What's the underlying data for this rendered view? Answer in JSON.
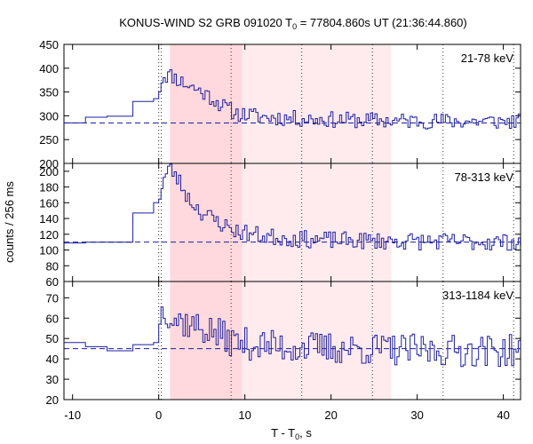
{
  "chart_data": {
    "type": "line",
    "title": "KONUS-WIND S2 GRB 091020 T",
    "title_sub": "0",
    "title_rest": " = 77804.860s UT (21:36:44.860)",
    "xlabel": "T - T",
    "xlabel_sub": "0",
    "xlabel_rest": ", s",
    "ylabel": "counts / 256 ms",
    "xlim": [
      -11,
      42
    ],
    "xticks": [
      -10,
      0,
      10,
      20,
      30,
      40
    ],
    "xtick_labels": [
      "-10",
      "0",
      "10",
      "20",
      "30",
      "40"
    ],
    "grid": false,
    "colors": {
      "line": "#1f1f9e",
      "background_line": "#1f1f9e",
      "shade_dark": "#ffd9dd",
      "shade_light": "#ffebee",
      "dotted": "#333333"
    },
    "shaded_regions": [
      {
        "from": 1.3,
        "to": 9.7,
        "shade": "dark"
      },
      {
        "from": 9.7,
        "to": 27.0,
        "shade": "light"
      }
    ],
    "vertical_markers": [
      0.0,
      0.3,
      8.4,
      16.6,
      24.8,
      33.0,
      41.2
    ],
    "panels": [
      {
        "label": "21-78 keV",
        "ylim": [
          200,
          450
        ],
        "yticks": [
          200,
          250,
          300,
          350,
          400,
          450
        ],
        "ytick_labels": [
          "200",
          "250",
          "300",
          "350",
          "400",
          "450"
        ],
        "background": 285,
        "pre_steps": [
          {
            "x": -11,
            "y": 285
          },
          {
            "x": -8.5,
            "y": 297
          },
          {
            "x": -6,
            "y": 299
          },
          {
            "x": -3,
            "y": 330
          },
          {
            "x": -0.6,
            "y": 336
          }
        ],
        "burst_shape": [
          {
            "t": 0.0,
            "v": 350
          },
          {
            "t": 0.5,
            "v": 385
          },
          {
            "t": 1.5,
            "v": 385
          },
          {
            "t": 3.0,
            "v": 368
          },
          {
            "t": 4.5,
            "v": 355
          },
          {
            "t": 6.0,
            "v": 340
          },
          {
            "t": 7.5,
            "v": 320
          },
          {
            "t": 9.0,
            "v": 305
          },
          {
            "t": 12.0,
            "v": 298
          },
          {
            "t": 16.0,
            "v": 294
          },
          {
            "t": 20.0,
            "v": 292
          },
          {
            "t": 26.0,
            "v": 290
          },
          {
            "t": 32.0,
            "v": 289
          },
          {
            "t": 42.0,
            "v": 288
          }
        ],
        "noise_amp": 17,
        "seed": 11
      },
      {
        "label": "78-313 keV",
        "ylim": [
          60,
          210
        ],
        "yticks": [
          60,
          80,
          100,
          120,
          140,
          160,
          180,
          200
        ],
        "ytick_labels": [
          "60",
          "80",
          "100",
          "120",
          "140",
          "160",
          "180",
          "200"
        ],
        "background": 110,
        "pre_steps": [
          {
            "x": -11,
            "y": 109
          },
          {
            "x": -8.5,
            "y": 110
          },
          {
            "x": -6,
            "y": 110
          },
          {
            "x": -3,
            "y": 147
          },
          {
            "x": -0.6,
            "y": 160
          }
        ],
        "burst_shape": [
          {
            "t": 0.0,
            "v": 165
          },
          {
            "t": 0.6,
            "v": 190
          },
          {
            "t": 1.3,
            "v": 205
          },
          {
            "t": 2.5,
            "v": 185
          },
          {
            "t": 3.5,
            "v": 165
          },
          {
            "t": 5.0,
            "v": 148
          },
          {
            "t": 7.0,
            "v": 135
          },
          {
            "t": 9.0,
            "v": 124
          },
          {
            "t": 12.0,
            "v": 118
          },
          {
            "t": 16.0,
            "v": 114
          },
          {
            "t": 22.0,
            "v": 112
          },
          {
            "t": 30.0,
            "v": 111
          },
          {
            "t": 42.0,
            "v": 110
          }
        ],
        "noise_amp": 11,
        "seed": 23
      },
      {
        "label": "313-1184 keV",
        "ylim": [
          20,
          78
        ],
        "yticks": [
          20,
          30,
          40,
          50,
          60,
          70
        ],
        "ytick_labels": [
          "20",
          "30",
          "40",
          "50",
          "60",
          "70"
        ],
        "background": 45,
        "pre_steps": [
          {
            "x": -11,
            "y": 48
          },
          {
            "x": -8.5,
            "y": 46
          },
          {
            "x": -6,
            "y": 44
          },
          {
            "x": -3,
            "y": 47
          },
          {
            "x": -0.6,
            "y": 48
          }
        ],
        "burst_shape": [
          {
            "t": 0.0,
            "v": 60
          },
          {
            "t": 0.7,
            "v": 66
          },
          {
            "t": 1.5,
            "v": 60
          },
          {
            "t": 3.0,
            "v": 58
          },
          {
            "t": 5.0,
            "v": 55
          },
          {
            "t": 7.0,
            "v": 52
          },
          {
            "t": 9.0,
            "v": 48
          },
          {
            "t": 14.0,
            "v": 46
          },
          {
            "t": 22.0,
            "v": 45
          },
          {
            "t": 32.0,
            "v": 44
          },
          {
            "t": 42.0,
            "v": 44
          }
        ],
        "noise_amp": 8,
        "seed": 37
      }
    ],
    "bin_width": 0.256
  }
}
